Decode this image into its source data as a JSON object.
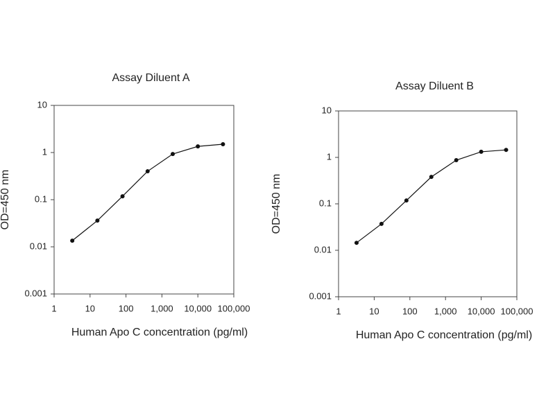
{
  "chart_data": [
    {
      "type": "line",
      "title": "Assay Diluent A",
      "x_label": "Human Apo C concentration (pg/ml)",
      "y_label": "OD=450 nm",
      "xscale": "log",
      "yscale": "log",
      "xlim": [
        1,
        100000
      ],
      "ylim": [
        0.001,
        10
      ],
      "xticks": [
        1,
        10,
        100,
        {
          "value": 1000,
          "label": "1,000"
        },
        {
          "value": 10000,
          "label": "10,000"
        },
        {
          "value": 100000,
          "label": "100,000"
        }
      ],
      "yticks": [
        0.001,
        0.01,
        0.1,
        1,
        10
      ],
      "x": [
        3.2,
        16,
        80,
        400,
        2000,
        10000,
        50000
      ],
      "series": [
        {
          "color": "#111111",
          "values": [
            0.0135,
            0.036,
            0.118,
            0.4,
            0.93,
            1.35,
            1.5
          ]
        }
      ]
    },
    {
      "type": "line",
      "title": "Assay Diluent B",
      "x_label": "Human Apo C concentration (pg/ml)",
      "y_label": "OD=450 nm",
      "xscale": "log",
      "yscale": "log",
      "xlim": [
        1,
        100000
      ],
      "ylim": [
        0.001,
        10
      ],
      "xticks": [
        1,
        10,
        100,
        {
          "value": 1000,
          "label": "1,000"
        },
        {
          "value": 10000,
          "label": "10,000"
        },
        {
          "value": 100000,
          "label": "100,000"
        }
      ],
      "yticks": [
        0.001,
        0.01,
        0.1,
        1,
        10
      ],
      "x": [
        3.2,
        16,
        80,
        400,
        2000,
        10000,
        50000
      ],
      "series": [
        {
          "color": "#111111",
          "values": [
            0.0145,
            0.037,
            0.118,
            0.38,
            0.87,
            1.32,
            1.45
          ]
        }
      ]
    }
  ]
}
